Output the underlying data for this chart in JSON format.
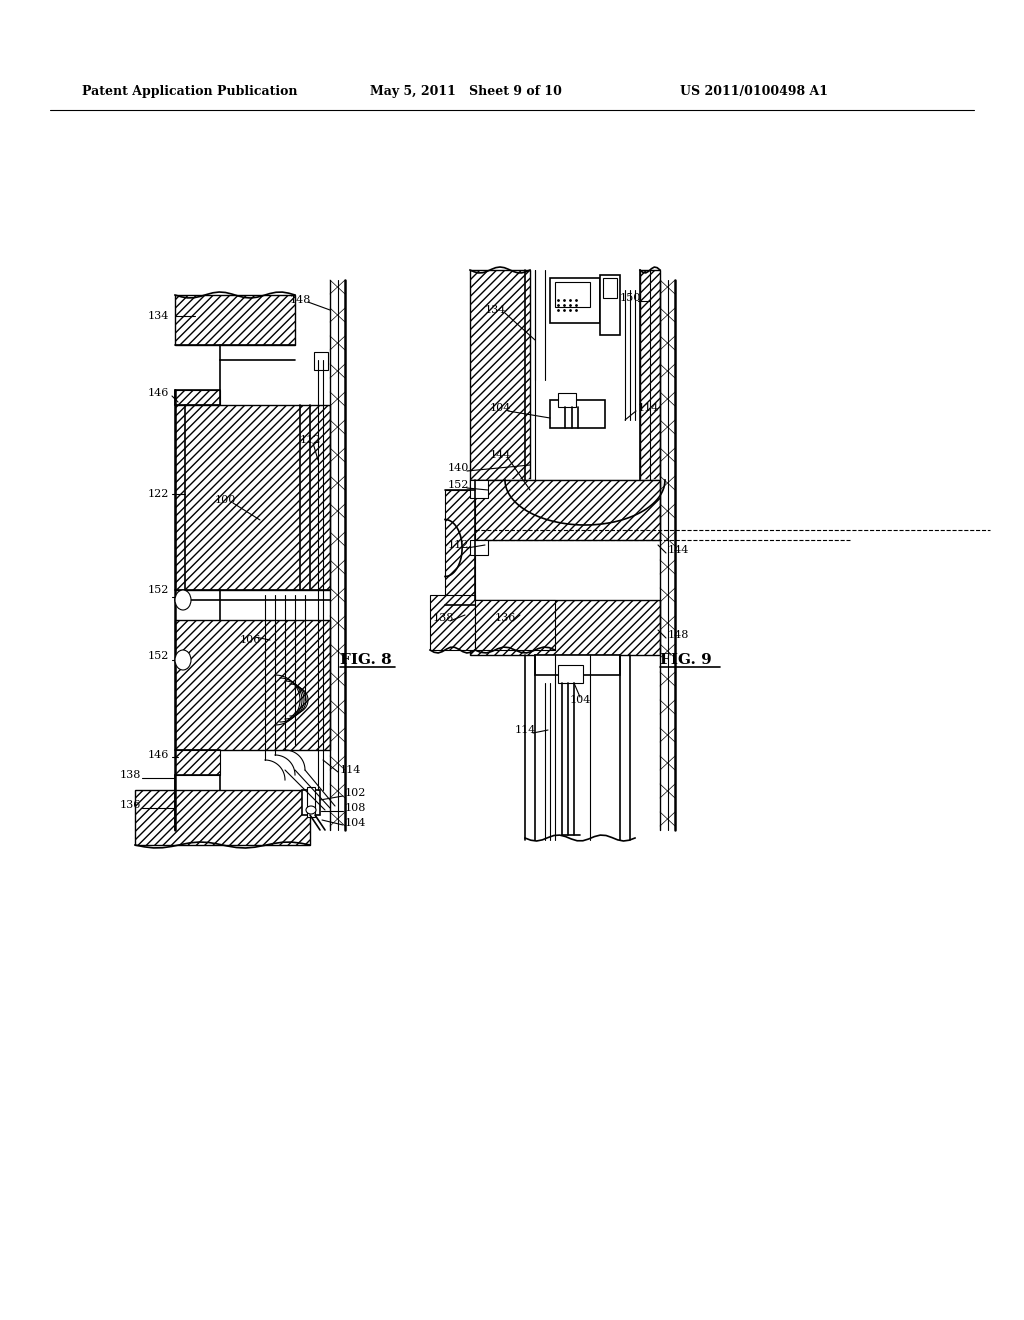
{
  "title_left": "Patent Application Publication",
  "title_mid": "May 5, 2011   Sheet 9 of 10",
  "title_right": "US 2011/0100498 A1",
  "fig8_label": "FIG. 8",
  "fig9_label": "FIG. 9",
  "bg_color": "#ffffff",
  "line_color": "#000000"
}
